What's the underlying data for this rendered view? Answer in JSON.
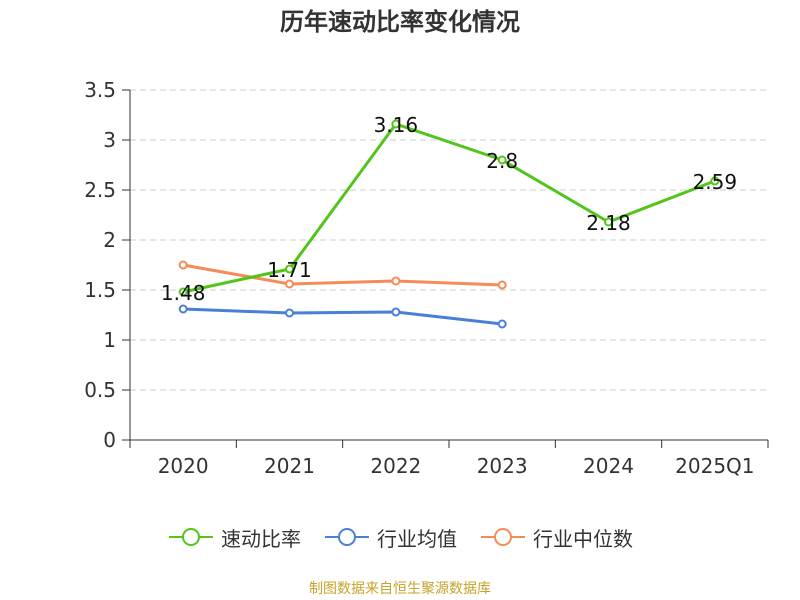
{
  "chart_data": {
    "type": "line",
    "title": "历年速动比率变化情况",
    "categories": [
      "2020",
      "2021",
      "2022",
      "2023",
      "2024",
      "2025Q1"
    ],
    "ylim": [
      0,
      3.5
    ],
    "yticks": [
      0,
      0.5,
      1,
      1.5,
      2,
      2.5,
      3,
      3.5
    ],
    "ytick_labels": [
      "0",
      "0.5",
      "1",
      "1.5",
      "2",
      "2.5",
      "3",
      "3.5"
    ],
    "grid": true,
    "xlabel": "",
    "ylabel": "",
    "legend_position": "bottom",
    "series": [
      {
        "name": "速动比率",
        "color": "#52c41a",
        "values": [
          1.48,
          1.71,
          3.16,
          2.8,
          2.18,
          2.59
        ],
        "labels": [
          "1.48",
          "1.71",
          "3.16",
          "2.8",
          "2.18",
          "2.59"
        ]
      },
      {
        "name": "行业均值",
        "color": "#4a7fd8",
        "values": [
          1.31,
          1.27,
          1.28,
          1.16,
          null,
          null
        ]
      },
      {
        "name": "行业中位数",
        "color": "#f68b57",
        "values": [
          1.75,
          1.56,
          1.59,
          1.55,
          null,
          null
        ]
      }
    ]
  },
  "footer": {
    "source": "制图数据来自恒生聚源数据库"
  }
}
